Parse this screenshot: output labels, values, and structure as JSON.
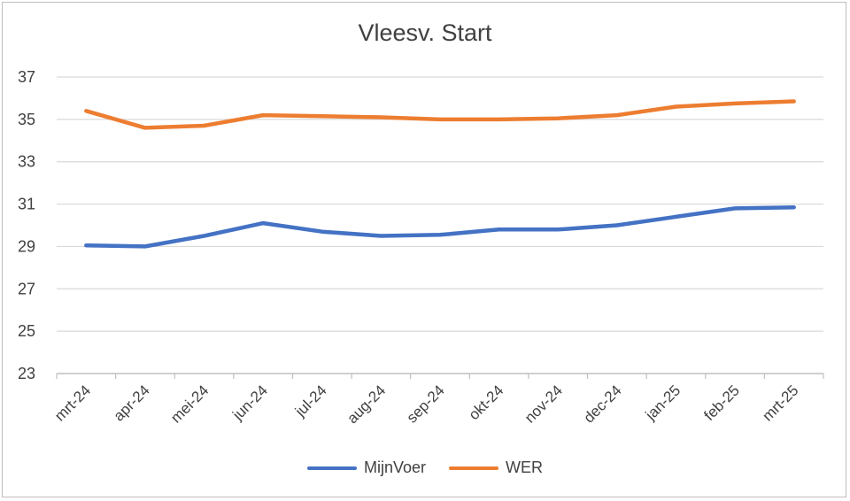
{
  "chart_data": {
    "type": "line",
    "title": "Vleesv. Start",
    "xlabel": "",
    "ylabel": "",
    "categories": [
      "mrt-24",
      "apr-24",
      "mei-24",
      "jun-24",
      "jul-24",
      "aug-24",
      "sep-24",
      "okt-24",
      "nov-24",
      "dec-24",
      "jan-25",
      "feb-25",
      "mrt-25"
    ],
    "ylim": [
      23,
      37
    ],
    "yticks": [
      23,
      25,
      27,
      29,
      31,
      33,
      35,
      37
    ],
    "grid": true,
    "legend_position": "bottom",
    "series": [
      {
        "name": "MijnVoer",
        "color": "#4472C4",
        "values": [
          29.05,
          29.0,
          29.5,
          30.1,
          29.7,
          29.5,
          29.55,
          29.8,
          29.8,
          30.0,
          30.4,
          30.8,
          30.85
        ]
      },
      {
        "name": "WER",
        "color": "#ED7D31",
        "values": [
          35.4,
          34.6,
          34.7,
          35.2,
          35.15,
          35.1,
          35.0,
          35.0,
          35.05,
          35.2,
          35.6,
          35.75,
          35.85
        ]
      }
    ]
  }
}
